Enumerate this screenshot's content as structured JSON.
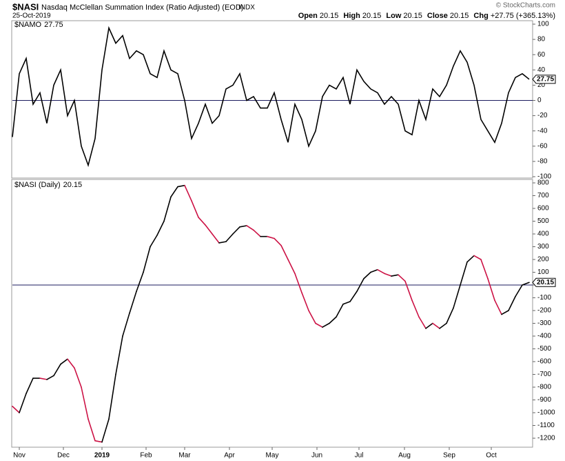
{
  "header": {
    "symbol": "$NASI",
    "name": "Nasdaq McClellan Summation Index (Ratio Adjusted) (EOD)",
    "exchange": "INDX",
    "date": "25-Oct-2019",
    "copyright": "© StockCharts.com",
    "quote": [
      {
        "label": "Open",
        "value": 20.15
      },
      {
        "label": "High",
        "value": 20.15
      },
      {
        "label": "Low",
        "value": 20.15
      },
      {
        "label": "Close",
        "value": 20.15
      },
      {
        "label": "Chg",
        "value": "+27.75 (+365.13%)"
      }
    ]
  },
  "chart_data": [
    {
      "type": "line",
      "name": "$NAMO",
      "color": "#000000",
      "zero_line": true,
      "values": [
        -48,
        35,
        55,
        -5,
        10,
        -30,
        20,
        40,
        -20,
        0,
        -60,
        -85,
        -50,
        40,
        95,
        75,
        85,
        55,
        65,
        60,
        35,
        30,
        65,
        40,
        35,
        0,
        -50,
        -30,
        -5,
        -30,
        -20,
        15,
        20,
        35,
        0,
        5,
        -10,
        -10,
        10,
        -25,
        -55,
        -5,
        -25,
        -60,
        -40,
        5,
        20,
        15,
        30,
        -5,
        40,
        25,
        15,
        10,
        -5,
        5,
        -5,
        -40,
        -45,
        0,
        -25,
        15,
        5,
        20,
        45,
        65,
        50,
        20,
        -25,
        -40,
        -55,
        -30,
        10,
        30,
        35,
        27.75
      ],
      "ylim": [
        -100,
        100
      ],
      "yticks": [
        100,
        80,
        60,
        40,
        20,
        0,
        -20,
        -40,
        -60,
        -80,
        -100
      ]
    },
    {
      "type": "line",
      "name": "$NASI (Daily)",
      "up_color": "#000000",
      "down_color": "#cc1144",
      "zero_line": true,
      "values": [
        -950,
        -1000,
        -850,
        -730,
        -730,
        -740,
        -710,
        -620,
        -580,
        -650,
        -800,
        -1050,
        -1220,
        -1230,
        -1050,
        -700,
        -400,
        -220,
        -50,
        100,
        300,
        390,
        500,
        690,
        770,
        780,
        660,
        530,
        470,
        400,
        330,
        340,
        400,
        455,
        465,
        430,
        380,
        380,
        365,
        310,
        200,
        90,
        -60,
        -200,
        -300,
        -330,
        -300,
        -250,
        -150,
        -130,
        -50,
        50,
        100,
        120,
        90,
        70,
        80,
        30,
        -120,
        -250,
        -340,
        -300,
        -340,
        -300,
        -180,
        0,
        180,
        230,
        200,
        50,
        -120,
        -230,
        -200,
        -90,
        0,
        20.15
      ],
      "ylim": [
        -1200,
        800
      ],
      "yticks": [
        800,
        700,
        600,
        500,
        400,
        300,
        200,
        100,
        0,
        -100,
        -200,
        -300,
        -400,
        -500,
        -600,
        -700,
        -800,
        -900,
        -1000,
        -1100,
        -1200
      ],
      "xticks": [
        {
          "value": 1,
          "label": "Nov"
        },
        {
          "value": 7.4,
          "label": "Dec"
        },
        {
          "value": 13,
          "label": "2019"
        },
        {
          "value": 19.4,
          "label": "Feb"
        },
        {
          "value": 25,
          "label": "Mar"
        },
        {
          "value": 31.5,
          "label": "Apr"
        },
        {
          "value": 37.7,
          "label": "May"
        },
        {
          "value": 44.2,
          "label": "Jun"
        },
        {
          "value": 50.3,
          "label": "Jul"
        },
        {
          "value": 56.9,
          "label": "Aug"
        },
        {
          "value": 63.4,
          "label": "Sep"
        },
        {
          "value": 69.5,
          "label": "Oct"
        }
      ]
    }
  ]
}
